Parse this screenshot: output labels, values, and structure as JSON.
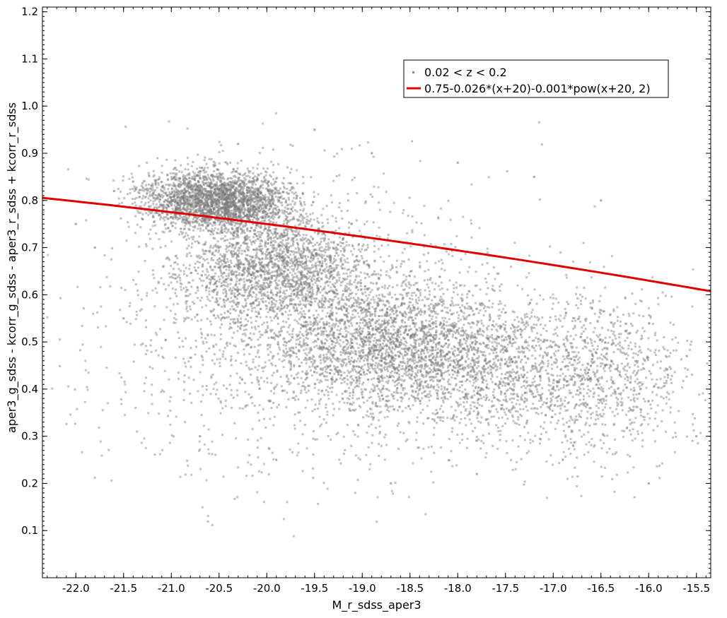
{
  "chart_data": {
    "type": "scatter",
    "title": "",
    "xlabel": "M_r_sdss_aper3",
    "ylabel": "aper3_g_sdss - kcorr_g_sdss - aper3_r_sdss + kcorr_r_sdss",
    "xlim": [
      -22.35,
      -15.35
    ],
    "ylim": [
      0.0,
      1.21
    ],
    "x_ticks": [
      -22.0,
      -21.5,
      -21.0,
      -20.5,
      -20.0,
      -19.5,
      -19.0,
      -18.5,
      -18.0,
      -17.5,
      -17.0,
      -16.5,
      -16.0,
      -15.5
    ],
    "x_tick_labels": [
      "-22.0",
      "-21.5",
      "-21.0",
      "-20.5",
      "-20.0",
      "-19.5",
      "-19.0",
      "-18.5",
      "-18.0",
      "-17.5",
      "-17.0",
      "-16.5",
      "-16.0",
      "-15.5"
    ],
    "y_ticks": [
      0.1,
      0.2,
      0.3,
      0.4,
      0.5,
      0.6,
      0.7,
      0.8,
      0.9,
      1.0,
      1.1,
      1.2
    ],
    "y_tick_labels": [
      "0.1",
      "0.2",
      "0.3",
      "0.4",
      "0.5",
      "0.6",
      "0.7",
      "0.8",
      "0.9",
      "1.0",
      "1.1",
      "1.2"
    ],
    "grid": false,
    "legend_position": "top-right",
    "series": [
      {
        "name": "0.02 < z < 0.2",
        "kind": "scatter",
        "color": "#8c8c8c",
        "description_density": [
          {
            "x": -20.5,
            "y": 0.8,
            "weight": 0.4
          },
          {
            "x": -19.8,
            "y": 0.62,
            "weight": 0.25
          },
          {
            "x": -18.5,
            "y": 0.48,
            "weight": 0.2
          },
          {
            "x": -17.0,
            "y": 0.45,
            "weight": 0.15
          }
        ],
        "points": [
          [
            -21.6,
            0.82
          ],
          [
            -21.4,
            0.84
          ],
          [
            -21.2,
            0.81
          ],
          [
            -21.0,
            0.8
          ],
          [
            -20.8,
            0.79
          ],
          [
            -20.6,
            0.81
          ],
          [
            -20.4,
            0.78
          ],
          [
            -20.2,
            0.79
          ],
          [
            -20.0,
            0.77
          ],
          [
            -19.8,
            0.76
          ],
          [
            -19.6,
            0.74
          ],
          [
            -19.4,
            0.73
          ],
          [
            -19.2,
            0.72
          ],
          [
            -21.3,
            0.76
          ],
          [
            -20.9,
            0.74
          ],
          [
            -20.5,
            0.7
          ],
          [
            -20.1,
            0.65
          ],
          [
            -19.9,
            0.6
          ],
          [
            -19.7,
            0.58
          ],
          [
            -19.5,
            0.55
          ],
          [
            -19.3,
            0.52
          ],
          [
            -19.0,
            0.5
          ],
          [
            -18.8,
            0.47
          ],
          [
            -18.5,
            0.45
          ],
          [
            -18.2,
            0.44
          ],
          [
            -17.9,
            0.42
          ],
          [
            -17.6,
            0.41
          ],
          [
            -17.3,
            0.43
          ],
          [
            -17.0,
            0.4
          ],
          [
            -16.7,
            0.42
          ],
          [
            -16.4,
            0.45
          ],
          [
            -16.1,
            0.39
          ],
          [
            -15.8,
            0.43
          ],
          [
            -15.6,
            0.47
          ],
          [
            -20.3,
            0.92
          ],
          [
            -19.5,
            0.95
          ],
          [
            -18.9,
            0.9
          ],
          [
            -18.0,
            0.88
          ],
          [
            -17.2,
            0.85
          ],
          [
            -16.5,
            0.8
          ],
          [
            -21.8,
            0.7
          ],
          [
            -21.5,
            0.55
          ],
          [
            -20.7,
            0.3
          ],
          [
            -19.9,
            0.25
          ],
          [
            -18.7,
            0.2
          ],
          [
            -17.8,
            0.22
          ],
          [
            -16.9,
            0.25
          ],
          [
            -16.0,
            0.2
          ],
          [
            -15.5,
            0.3
          ],
          [
            -22.0,
            0.75
          ]
        ]
      },
      {
        "name": "0.75-0.026*(x+20)-0.001*pow(x+20, 2)",
        "kind": "function",
        "color": "#e00000",
        "formula": {
          "a": 0.75,
          "b": -0.026,
          "c": -0.001,
          "x0": -20
        }
      }
    ]
  }
}
